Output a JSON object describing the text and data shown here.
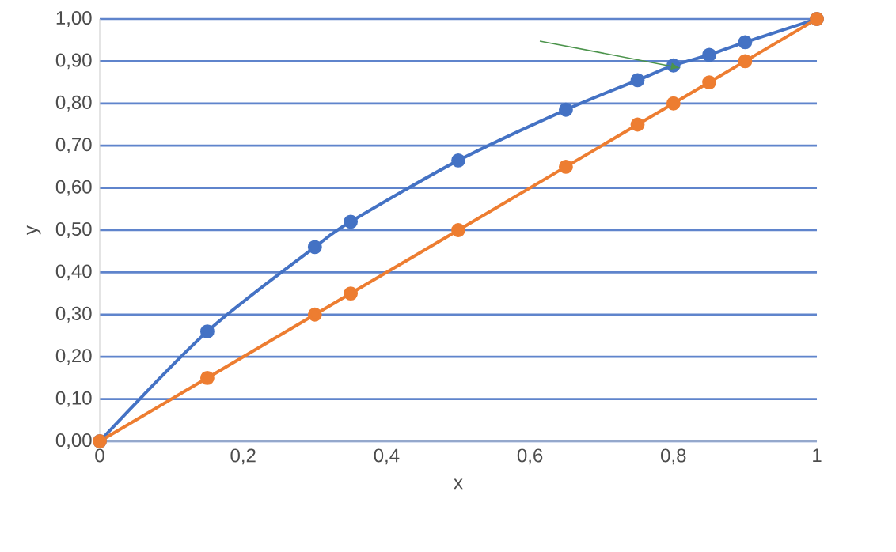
{
  "chart_data": {
    "type": "line",
    "xlabel": "x",
    "ylabel": "y",
    "xlim": [
      0,
      1
    ],
    "ylim": [
      0,
      1
    ],
    "xticks": [
      0,
      {
        "value": 0.2,
        "label": "0,2"
      },
      {
        "value": 0.4,
        "label": "0,4"
      },
      {
        "value": 0.6,
        "label": "0,6"
      },
      {
        "value": 0.8,
        "label": "0,8"
      },
      1
    ],
    "yticks": [
      {
        "value": 0,
        "label": "0,00"
      },
      {
        "value": 0.1,
        "label": "0,10"
      },
      {
        "value": 0.2,
        "label": "0,20"
      },
      {
        "value": 0.3,
        "label": "0,30"
      },
      {
        "value": 0.4,
        "label": "0,40"
      },
      {
        "value": 0.5,
        "label": "0,50"
      },
      {
        "value": 0.6,
        "label": "0,60"
      },
      {
        "value": 0.7,
        "label": "0,70"
      },
      {
        "value": 0.8,
        "label": "0,80"
      },
      {
        "value": 0.9,
        "label": "0,90"
      },
      {
        "value": 1,
        "label": "1,00"
      }
    ],
    "grid": "y",
    "marker": "circle",
    "line_style": "solid",
    "x": [
      0,
      0.15,
      0.3,
      0.35,
      0.5,
      0.65,
      0.75,
      0.8,
      0.85,
      0.9,
      1
    ],
    "series": [
      {
        "color": "#4472c4",
        "values": [
          0,
          0.26,
          0.46,
          0.52,
          0.665,
          0.785,
          0.855,
          0.89,
          0.915,
          0.945,
          1
        ]
      },
      {
        "color": "#ed7d31",
        "values": [
          0,
          0.15,
          0.3,
          0.35,
          0.5,
          0.65,
          0.75,
          0.8,
          0.85,
          0.9,
          1
        ]
      }
    ]
  }
}
